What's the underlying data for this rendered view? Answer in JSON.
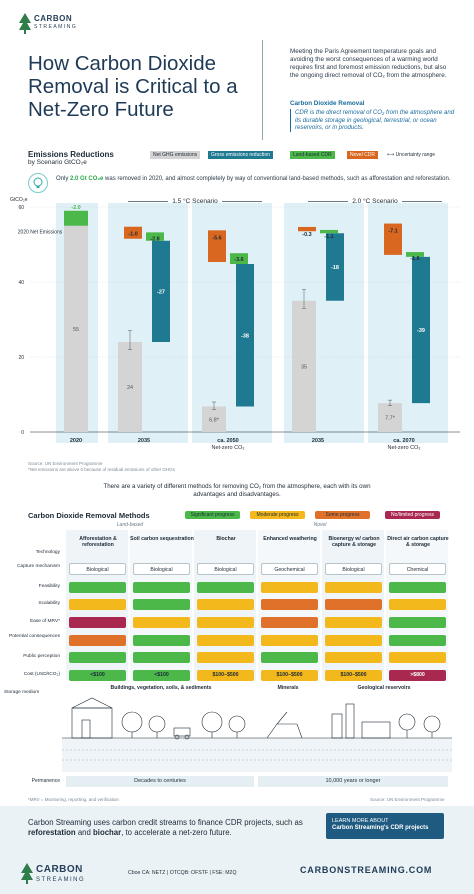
{
  "brand": {
    "logo_line1": "CARBON",
    "logo_line2": "STREAMING"
  },
  "title": "How Carbon Dioxide Removal is Critical to a Net-Zero Future",
  "intro": "Meeting the Paris Agreement temperature goals and avoiding the worst consequences of a warming world requires first and foremost emission reductions, but also the ongoing direct removal of CO₂ from the atmosphere.",
  "cdr_definition": {
    "title": "Carbon Dioxide Removal",
    "text": "CDR is the direct removal of CO₂ from the atmosphere and its durable storage in geological, terrestrial, or ocean reservoirs, or in products."
  },
  "chart_section": {
    "title": "Emissions Reductions",
    "subtitle": "by Scenario GtCO₂e",
    "legend": [
      "Net GHG emissions",
      "Gross emissions reduction",
      "Land-based CDR",
      "Novel CDR",
      "Uncertainty range"
    ],
    "note_prefix": "Only ",
    "note_highlight": "2.0 Gt CO₂e",
    "note_suffix": " was removed in 2020, and almost completely by way of conventional land-based methods, such as afforestation and reforestation.",
    "scenario_15": "1.5 °C Scenario",
    "scenario_20": "2.0 °C Scenario",
    "baseline_label": "2020 Net Emissions",
    "source": "Source: UN Environment Programme",
    "footnote": "*Net emissions are above 0 because of residual emissions of other GHGs"
  },
  "chart_data": {
    "type": "bar",
    "ylabel": "GtCO₂e",
    "ylim": [
      0,
      60
    ],
    "yticks": [
      0,
      20,
      40,
      60
    ],
    "categories": [
      "2020",
      "2035",
      "ca. 2050 Net-zero CO₂",
      "2035",
      "ca. 2070 Net-zero CO₂"
    ],
    "series": [
      {
        "name": "Net GHG emissions",
        "values": [
          55,
          24,
          6.8,
          35,
          7.7
        ],
        "labels": [
          "55",
          "24",
          "6.8*",
          "35",
          "7.7*"
        ]
      },
      {
        "name": "Gross emissions reduction",
        "values": [
          0,
          27,
          38,
          18,
          39
        ],
        "labels": [
          "",
          "-27",
          "-38",
          "-18",
          "-39"
        ]
      },
      {
        "name": "Land-based CDR",
        "values": [
          2.0,
          2.8,
          3.6,
          1.1,
          1.6
        ],
        "labels": [
          "-2.0",
          "-2.8",
          "-3.6",
          "-1.1",
          "-1.6"
        ]
      },
      {
        "name": "Novel CDR",
        "values": [
          0,
          1.0,
          5.6,
          0.3,
          7.1
        ],
        "labels": [
          "",
          "-1.0",
          "-5.6",
          "-0.3",
          "-7.1"
        ]
      }
    ],
    "uncertainty": [
      null,
      [
        22,
        27
      ],
      [
        6,
        8
      ],
      [
        33,
        38
      ],
      [
        7,
        8.5
      ]
    ],
    "colors": {
      "net": "#d4d4d4",
      "gross": "#1f7a91",
      "land": "#4bb849",
      "novel": "#d9671f",
      "highlight": "#dff0f6"
    }
  },
  "middle_text": "There are a variety of different methods for removing CO₂ from the atmosphere, each with its own advantages and disadvantages.",
  "methods": {
    "title": "Carbon Dioxide Removal Methods",
    "legend": [
      {
        "label": "Significant progress",
        "color": "#4bb849"
      },
      {
        "label": "Moderate progress",
        "color": "#f2b81c"
      },
      {
        "label": "Some progress",
        "color": "#e0712b"
      },
      {
        "label": "No/limited progress",
        "color": "#a8284f"
      }
    ],
    "tag_land": "Land-based",
    "tag_novel": "Novel",
    "row_labels": [
      "Technology",
      "Capture mechanism",
      "Feasibility",
      "Scalability",
      "Ease of MRV*",
      "Potential consequences",
      "Public perception",
      "Cost (USD/tCO₂)",
      "Storage medium"
    ],
    "columns": [
      {
        "name": "Afforestation & reforestation",
        "mechanism": "Biological",
        "ratings": [
          "#4bb849",
          "#f2b81c",
          "#a8284f",
          "#e0712b",
          "#4bb849"
        ],
        "cost": "<$100",
        "cost_color": "#4bb849"
      },
      {
        "name": "Soil carbon sequestration",
        "mechanism": "Biological",
        "ratings": [
          "#4bb849",
          "#4bb849",
          "#f2b81c",
          "#4bb849",
          "#4bb849"
        ],
        "cost": "<$100",
        "cost_color": "#4bb849"
      },
      {
        "name": "Biochar",
        "mechanism": "Biological",
        "ratings": [
          "#4bb849",
          "#f2b81c",
          "#f2b81c",
          "#f2b81c",
          "#f2b81c"
        ],
        "cost": "$100–$500",
        "cost_color": "#f2b81c"
      },
      {
        "name": "Enhanced weathering",
        "mechanism": "Geochemical",
        "ratings": [
          "#f2b81c",
          "#e0712b",
          "#e0712b",
          "#f2b81c",
          "#4bb849"
        ],
        "cost": "$100–$500",
        "cost_color": "#f2b81c"
      },
      {
        "name": "Bioenergy w/ carbon capture & storage",
        "mechanism": "Biological",
        "ratings": [
          "#f2b81c",
          "#e0712b",
          "#f2b81c",
          "#f2b81c",
          "#f2b81c"
        ],
        "cost": "$100–$500",
        "cost_color": "#f2b81c"
      },
      {
        "name": "Direct air carbon capture & storage",
        "mechanism": "Chemical",
        "ratings": [
          "#4bb849",
          "#f2b81c",
          "#4bb849",
          "#4bb849",
          "#f2b81c"
        ],
        "cost": ">$800",
        "cost_color": "#a8284f"
      }
    ],
    "storage": [
      "Buildings, vegetation, soils, & sediments",
      "Minerals",
      "Geological reservoirs"
    ],
    "permanence_label": "Permanence",
    "permanence": [
      "Decades to centuries",
      "10,000 years or longer"
    ],
    "mrv_note": "*MRV = Monitoring, reporting, and verification",
    "source": "Source: UN Environment Programme"
  },
  "footer": {
    "text_before": "Carbon Streaming uses carbon credit streams to finance CDR projects, such as ",
    "bold1": "reforestation",
    "text_mid": " and ",
    "bold2": "biochar",
    "text_after": ", to accelerate a net-zero future.",
    "cta_line1": "LEARN MORE ABOUT",
    "cta_line2": "Carbon Streaming's CDR projects",
    "exchange": "Cboe CA: NETZ | OTCQB: OFSTF | FSE: M2Q",
    "url": "CARBONSTREAMING.COM"
  }
}
